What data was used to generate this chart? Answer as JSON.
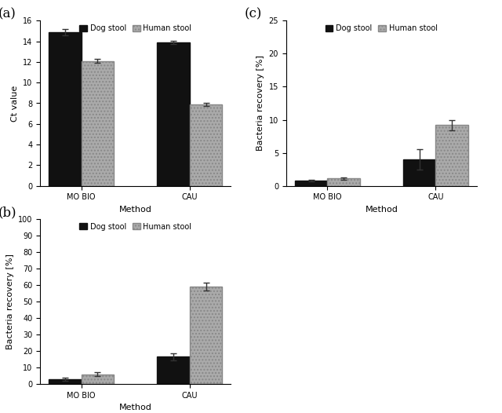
{
  "panel_a": {
    "label": "(a)",
    "categories": [
      "MO BIO",
      "CAU"
    ],
    "dog_values": [
      14.9,
      13.9
    ],
    "human_values": [
      12.1,
      7.9
    ],
    "dog_errors": [
      0.3,
      0.15
    ],
    "human_errors": [
      0.2,
      0.15
    ],
    "ylabel": "Ct value",
    "xlabel": "Method",
    "ylim": [
      0,
      16
    ],
    "yticks": [
      0,
      2,
      4,
      6,
      8,
      10,
      12,
      14,
      16
    ]
  },
  "panel_b": {
    "label": "(b)",
    "categories": [
      "MO BIO",
      "CAU"
    ],
    "dog_values": [
      3.0,
      16.5
    ],
    "human_values": [
      6.0,
      59.0
    ],
    "dog_errors": [
      1.0,
      2.0
    ],
    "human_errors": [
      1.0,
      2.5
    ],
    "ylabel": "Bacteria recovery [%]",
    "xlabel": "Method",
    "ylim": [
      0,
      100
    ],
    "yticks": [
      0,
      10,
      20,
      30,
      40,
      50,
      60,
      70,
      80,
      90,
      100
    ]
  },
  "panel_c": {
    "label": "(c)",
    "categories": [
      "MO BIO",
      "CAU"
    ],
    "dog_values": [
      0.8,
      4.0
    ],
    "human_values": [
      1.1,
      9.2
    ],
    "dog_errors": [
      0.1,
      1.5
    ],
    "human_errors": [
      0.2,
      0.8
    ],
    "ylabel": "Bacteria recovery [%]",
    "xlabel": "Method",
    "ylim": [
      0,
      25
    ],
    "yticks": [
      0,
      5,
      10,
      15,
      20,
      25
    ]
  },
  "dog_color": "#111111",
  "human_color": "#aaaaaa",
  "bar_width": 0.3,
  "legend_labels": [
    "Dog stool",
    "Human stool"
  ],
  "bg_color": "#ffffff",
  "fontsize_label": 8,
  "fontsize_tick": 7,
  "fontsize_legend": 7,
  "fontsize_panel_label": 12
}
